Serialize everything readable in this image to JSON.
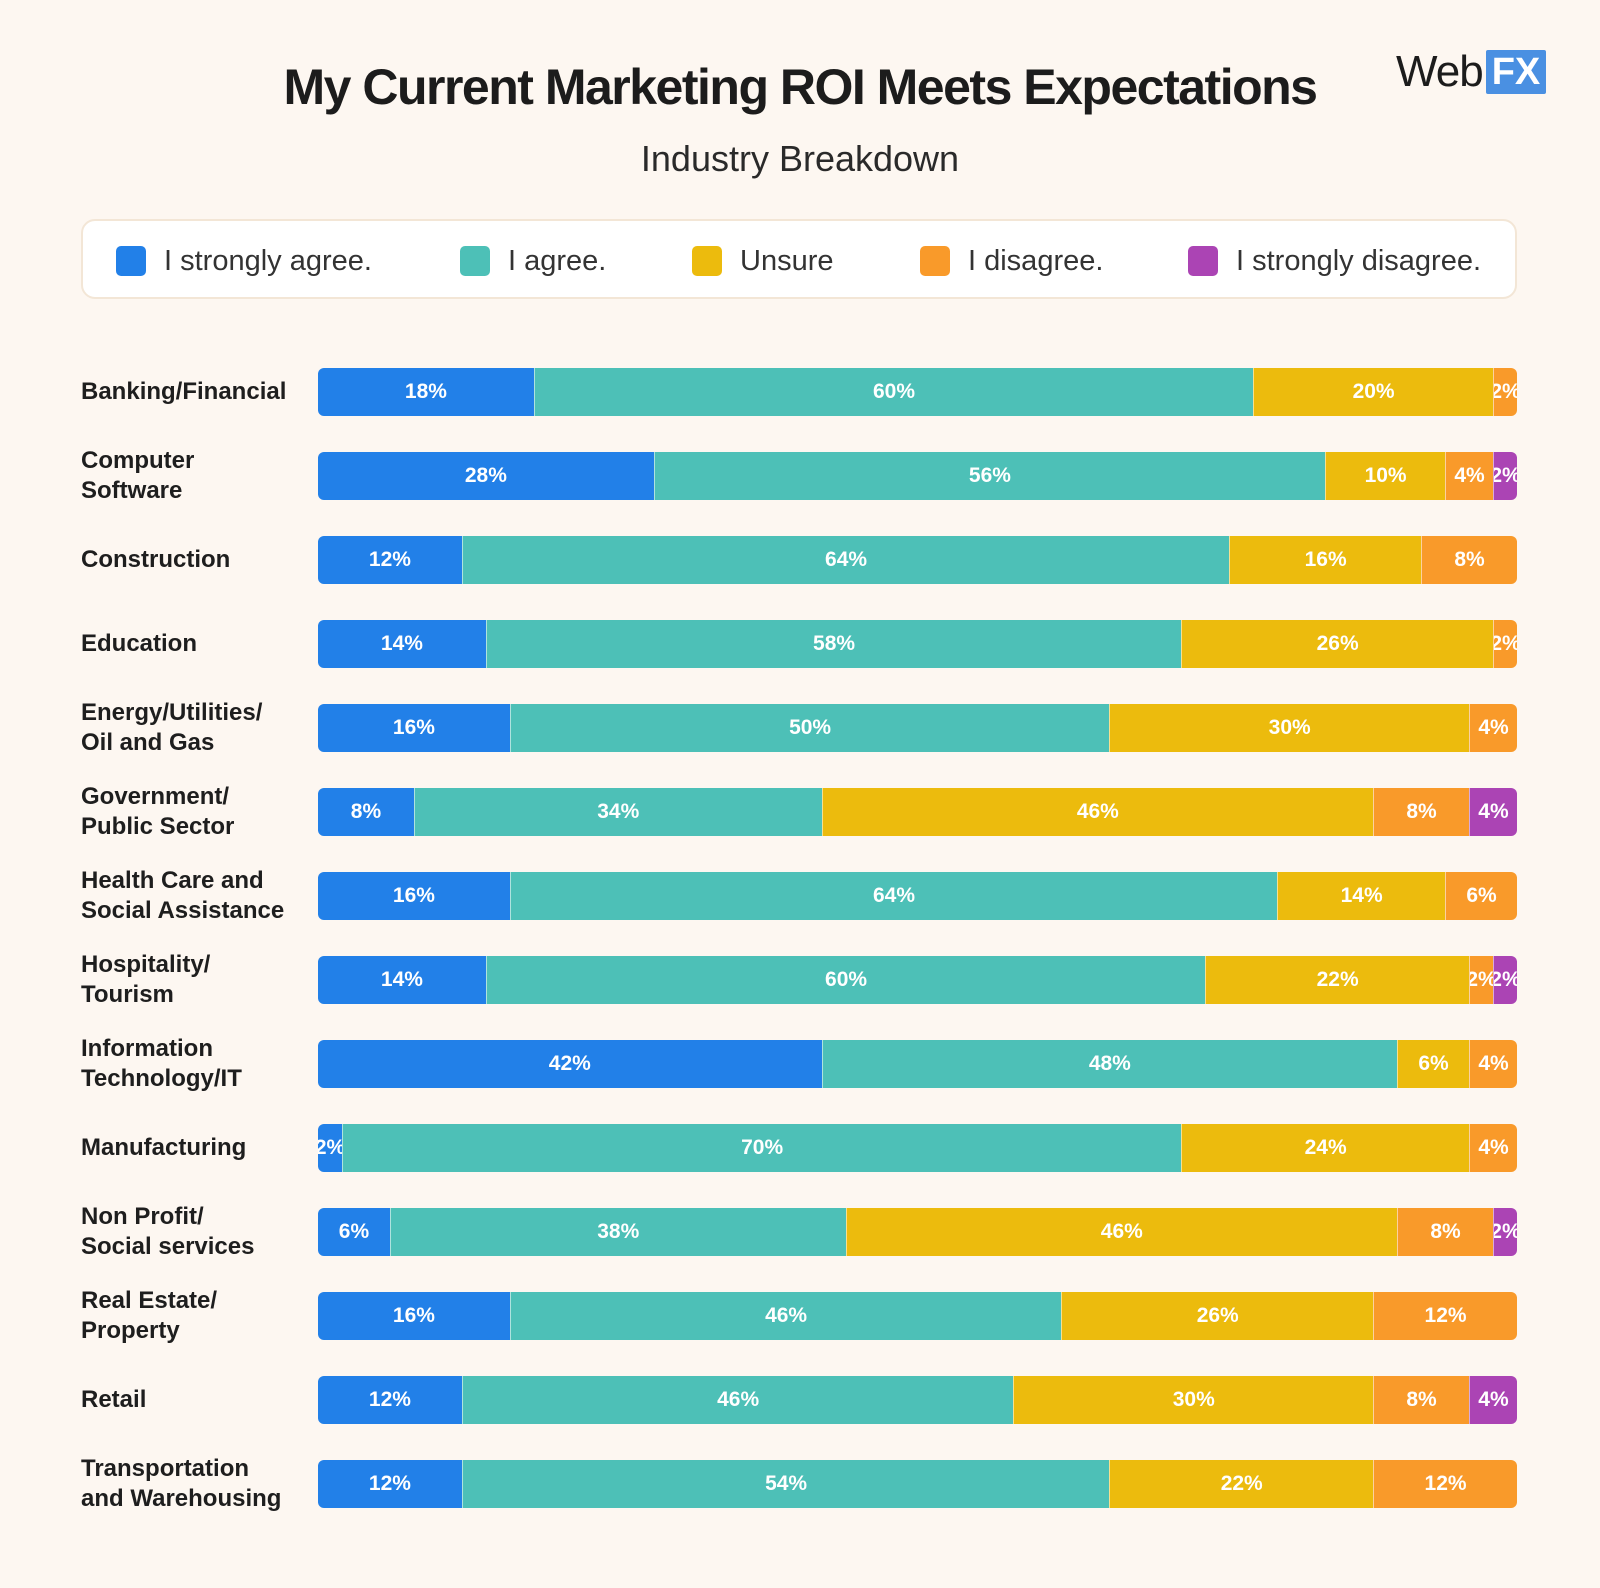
{
  "title": "My Current Marketing ROI Meets Expectations",
  "subtitle": "Industry Breakdown",
  "logo": {
    "web": "Web",
    "fx": "FX"
  },
  "legend": [
    {
      "label": "I strongly agree.",
      "color": "#2280e8"
    },
    {
      "label": "I agree.",
      "color": "#4dc0b7"
    },
    {
      "label": "Unsure",
      "color": "#ecbb0d"
    },
    {
      "label": "I disagree.",
      "color": "#f99a2a"
    },
    {
      "label": "I strongly disagree.",
      "color": "#ab44b4"
    }
  ],
  "chart_data": {
    "type": "bar",
    "orientation": "horizontal",
    "stacked": true,
    "title": "My Current Marketing ROI Meets Expectations",
    "subtitle": "Industry Breakdown",
    "value_unit": "%",
    "xlim": [
      0,
      100
    ],
    "categories": [
      "Banking/Financial",
      "Computer Software",
      "Construction",
      "Education",
      "Energy/Utilities/ Oil and Gas",
      "Government/ Public Sector",
      "Health Care and Social Assistance",
      "Hospitality/ Tourism",
      "Information Technology/IT",
      "Manufacturing",
      "Non Profit/ Social services",
      "Real Estate/ Property",
      "Retail",
      "Transportation and Warehousing"
    ],
    "category_lines": [
      [
        "Banking/Financial"
      ],
      [
        "Computer",
        "Software"
      ],
      [
        "Construction"
      ],
      [
        "Education"
      ],
      [
        "Energy/Utilities/",
        "Oil and Gas"
      ],
      [
        "Government/",
        "Public Sector"
      ],
      [
        "Health Care and",
        "Social Assistance"
      ],
      [
        "Hospitality/",
        "Tourism"
      ],
      [
        "Information",
        "Technology/IT"
      ],
      [
        "Manufacturing"
      ],
      [
        "Non Profit/",
        "Social services"
      ],
      [
        "Real Estate/",
        "Property"
      ],
      [
        "Retail"
      ],
      [
        "Transportation",
        "and Warehousing"
      ]
    ],
    "series": [
      {
        "name": "I strongly agree.",
        "color": "#2280e8",
        "values": [
          18,
          28,
          12,
          14,
          16,
          8,
          16,
          14,
          42,
          2,
          6,
          16,
          12,
          12
        ]
      },
      {
        "name": "I agree.",
        "color": "#4dc0b7",
        "values": [
          60,
          56,
          64,
          58,
          50,
          34,
          64,
          60,
          48,
          70,
          38,
          46,
          46,
          54
        ]
      },
      {
        "name": "Unsure",
        "color": "#ecbb0d",
        "values": [
          20,
          10,
          16,
          26,
          30,
          46,
          14,
          22,
          6,
          24,
          46,
          26,
          30,
          22
        ]
      },
      {
        "name": "I disagree.",
        "color": "#f99a2a",
        "values": [
          2,
          4,
          8,
          2,
          4,
          8,
          6,
          2,
          4,
          4,
          8,
          12,
          8,
          12
        ]
      },
      {
        "name": "I strongly disagree.",
        "color": "#ab44b4",
        "values": [
          0,
          2,
          0,
          0,
          0,
          4,
          0,
          2,
          0,
          0,
          2,
          0,
          4,
          0
        ]
      }
    ]
  }
}
